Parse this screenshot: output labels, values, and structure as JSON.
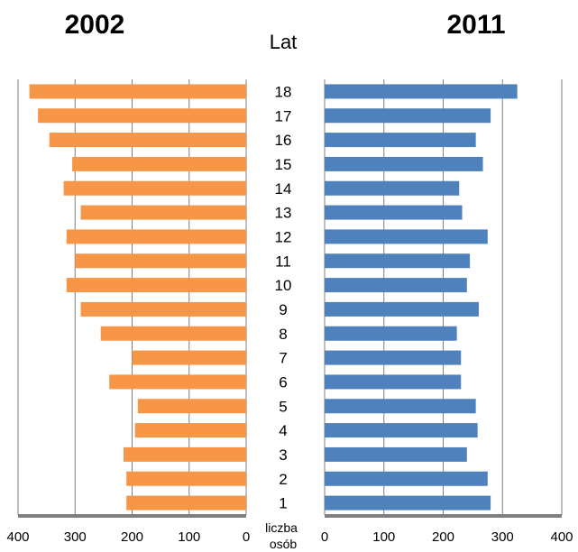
{
  "chart_data": {
    "type": "bar",
    "layout": "population-pyramid",
    "ylabel": "Lat",
    "xlabel": "liczba osób",
    "categories": [
      "1",
      "2",
      "3",
      "4",
      "5",
      "6",
      "7",
      "8",
      "9",
      "10",
      "11",
      "12",
      "13",
      "14",
      "15",
      "16",
      "17",
      "18"
    ],
    "xlim": [
      0,
      400
    ],
    "xticks": [
      "400",
      "300",
      "200",
      "100",
      "0",
      "0",
      "100",
      "200",
      "300",
      "400"
    ],
    "grid": true,
    "series": [
      {
        "name": "2002",
        "side": "left",
        "color": "#f79646",
        "values": [
          210,
          210,
          215,
          195,
          190,
          240,
          200,
          255,
          290,
          315,
          300,
          315,
          290,
          320,
          305,
          345,
          365,
          380
        ]
      },
      {
        "name": "2011",
        "side": "right",
        "color": "#4f81bd",
        "values": [
          280,
          275,
          240,
          258,
          255,
          230,
          230,
          223,
          260,
          240,
          245,
          275,
          232,
          227,
          267,
          255,
          280,
          325
        ]
      }
    ]
  }
}
